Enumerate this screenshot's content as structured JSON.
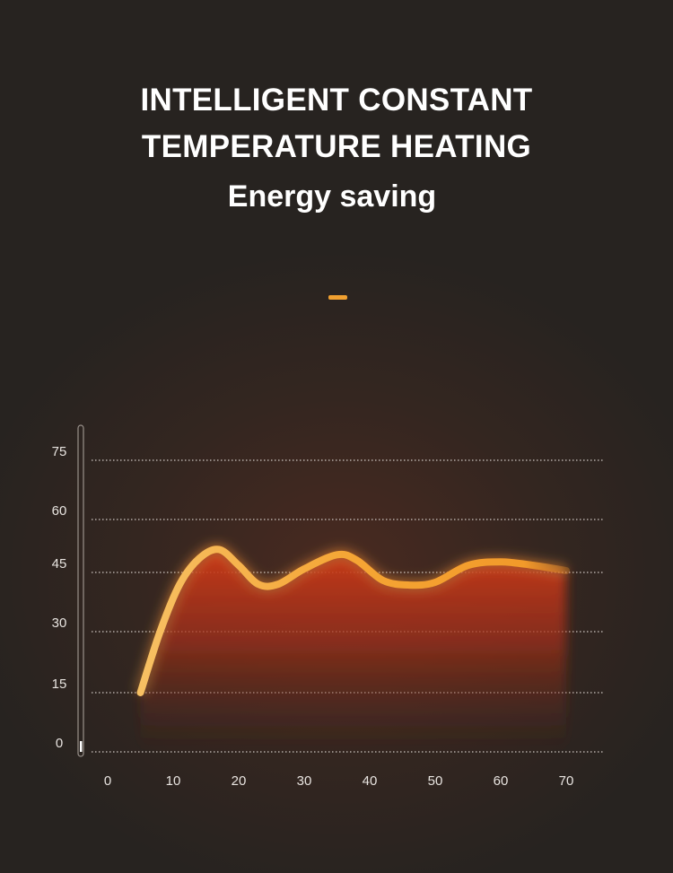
{
  "header": {
    "title_line1": "INTELLIGENT CONSTANT",
    "title_line2": "TEMPERATURE HEATING",
    "subtitle": "Energy saving"
  },
  "colors": {
    "curve": "#f5a534",
    "accent_dash": "#f0a030",
    "fill": "#c2371a",
    "background": "#2a2522"
  },
  "chart_data": {
    "type": "area",
    "title": "",
    "xlabel": "",
    "ylabel": "",
    "x_ticks": [
      "0",
      "10",
      "20",
      "30",
      "40",
      "50",
      "60",
      "70"
    ],
    "y_ticks": [
      "0",
      "15",
      "30",
      "45",
      "60",
      "75"
    ],
    "xlim": [
      0,
      70
    ],
    "ylim": [
      0,
      75
    ],
    "grid": "horizontal dotted",
    "series": [
      {
        "points": [
          [
            5,
            15
          ],
          [
            8,
            30
          ],
          [
            11,
            42
          ],
          [
            14,
            49
          ],
          [
            17,
            51.5
          ],
          [
            20,
            47
          ],
          [
            23,
            42
          ],
          [
            26,
            42
          ],
          [
            30,
            46
          ],
          [
            35,
            50
          ],
          [
            38,
            48.5
          ],
          [
            42,
            43
          ],
          [
            46,
            41.8
          ],
          [
            50,
            42.5
          ],
          [
            55,
            47
          ],
          [
            60,
            48
          ],
          [
            65,
            47
          ],
          [
            70,
            45.5
          ]
        ]
      }
    ]
  }
}
